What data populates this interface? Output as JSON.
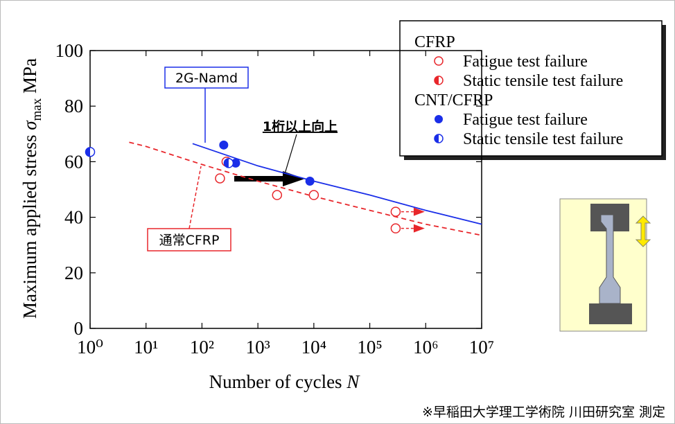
{
  "chart_data": {
    "type": "scatter",
    "xlabel": {
      "text": "Number of cycles",
      "symbol": "N"
    },
    "ylabel": {
      "text": "Maximum applied stress",
      "symbol": "σ",
      "subscript": "max",
      "unit": "MPa"
    },
    "log_x": true,
    "xlim": [
      1,
      10000000
    ],
    "xticks": [
      {
        "value": 1,
        "label": "10⁰"
      },
      {
        "value": 10,
        "label": "10¹"
      },
      {
        "value": 100,
        "label": "10²"
      },
      {
        "value": 1000,
        "label": "10³"
      },
      {
        "value": 10000,
        "label": "10⁴"
      },
      {
        "value": 100000,
        "label": "10⁵"
      },
      {
        "value": 1000000,
        "label": "10⁶"
      },
      {
        "value": 10000000,
        "label": "10⁷"
      }
    ],
    "ylim": [
      0,
      100
    ],
    "yticks": [
      0,
      20,
      40,
      60,
      80,
      100
    ],
    "groups": [
      {
        "name": "CFRP",
        "series": [
          {
            "name": "Fatigue test failure",
            "marker": "open",
            "color": "#e8262b",
            "x": [
              275,
              210,
              2200,
              10000,
              290000,
              290000
            ],
            "values": [
              60,
              54,
              48,
              48,
              42,
              36
            ],
            "runout": [
              false,
              false,
              false,
              false,
              true,
              true
            ]
          },
          {
            "name": "Static tensile test failure",
            "marker": "half",
            "color": "#e8262b",
            "x": [],
            "values": []
          }
        ]
      },
      {
        "name": "CNT/CFRP",
        "series": [
          {
            "name": "Fatigue test failure",
            "marker": "filled",
            "color": "#1a2ee8",
            "x": [
              245,
              400,
              8500
            ],
            "values": [
              66,
              59.5,
              53
            ]
          },
          {
            "name": "Static tensile test failure",
            "marker": "half",
            "color": "#1a2ee8",
            "x": [
              1,
              300
            ],
            "values": [
              63.5,
              59.5
            ]
          }
        ]
      }
    ],
    "fits": [
      {
        "color": "#1a2ee8",
        "dashed": false,
        "x": [
          68,
          1000,
          10000,
          100000,
          1000000,
          10000000
        ],
        "values": [
          66.5,
          58.5,
          53,
          48,
          42.5,
          37.5
        ]
      },
      {
        "color": "#e8262b",
        "dashed": true,
        "x": [
          5,
          10,
          100,
          1000,
          10000,
          100000,
          1000000,
          10000000
        ],
        "values": [
          67,
          65.5,
          59,
          53,
          47.5,
          42.5,
          37.5,
          33.5
        ]
      }
    ],
    "annotations": {
      "blue_fit": "2G-Namd",
      "red_fit": "通常CFRP",
      "improvement": "1桁以上向上"
    },
    "footnote": "※早稲田大学理工学術院 川田研究室 測定"
  }
}
